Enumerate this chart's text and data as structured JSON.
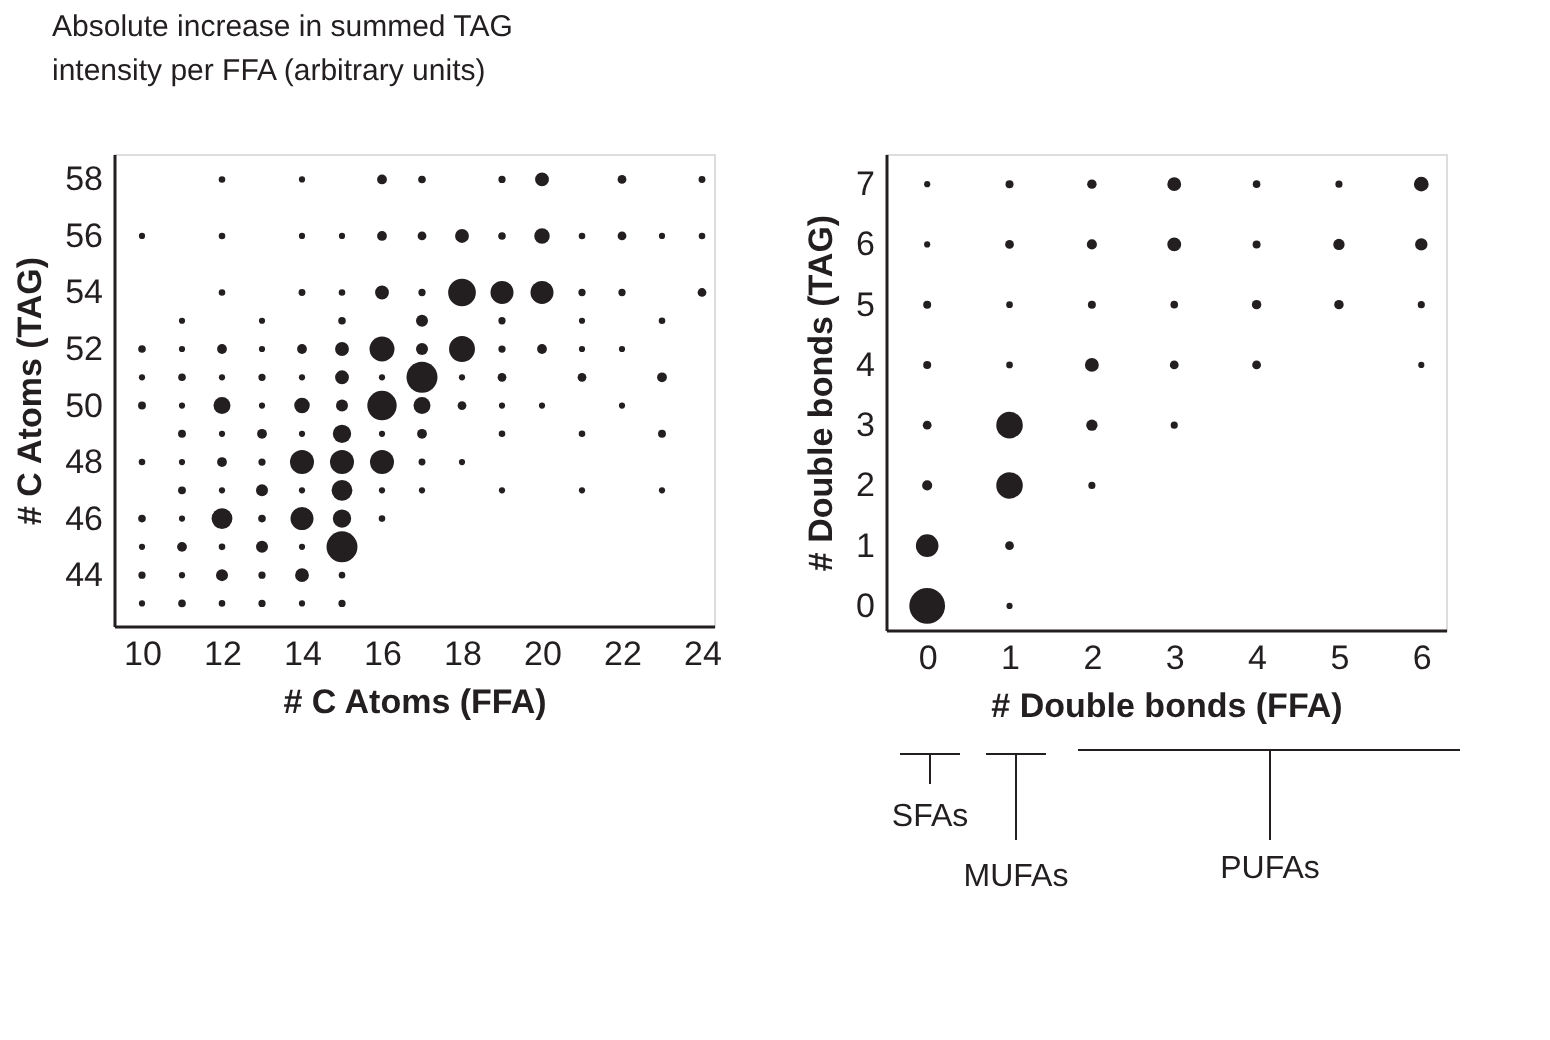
{
  "chart_data": [
    {
      "type": "bubble",
      "xlabel": "# C Atoms (FFA)",
      "ylabel": "# C Atoms (TAG)",
      "legend_title": "Absolute increase in summed TAG intensity per FFA (arbitrary units)",
      "xlim": [
        9.3,
        24.3
      ],
      "ylim": [
        42.2,
        58.9
      ],
      "xticks": [
        10,
        12,
        14,
        16,
        18,
        20,
        22,
        24
      ],
      "yticks": [
        44,
        46,
        48,
        50,
        52,
        54,
        56,
        58
      ],
      "series": [
        {
          "color": "#231f20",
          "x": [
            12,
            14,
            16,
            17,
            19,
            20,
            22,
            24,
            10,
            12,
            14,
            15,
            16,
            17,
            18,
            19,
            20,
            21,
            22,
            23,
            24,
            12,
            14,
            15,
            16,
            17,
            18,
            19,
            20,
            21,
            22,
            24,
            11,
            13,
            15,
            17,
            19,
            21,
            23,
            10,
            11,
            12,
            13,
            14,
            15,
            16,
            17,
            18,
            19,
            20,
            21,
            22,
            10,
            11,
            12,
            13,
            14,
            15,
            16,
            17,
            18,
            19,
            21,
            23,
            10,
            11,
            12,
            13,
            14,
            15,
            16,
            17,
            18,
            19,
            20,
            22,
            11,
            12,
            13,
            14,
            15,
            16,
            17,
            19,
            21,
            23,
            10,
            11,
            12,
            13,
            14,
            15,
            16,
            17,
            18,
            11,
            12,
            13,
            14,
            15,
            16,
            17,
            19,
            21,
            23,
            10,
            11,
            12,
            13,
            14,
            15,
            16,
            10,
            11,
            12,
            13,
            14,
            15,
            10,
            11,
            12,
            13,
            14,
            15,
            10,
            11,
            12,
            13,
            14,
            15
          ],
          "values": [
            58,
            58,
            58,
            58,
            58,
            58,
            58,
            58,
            56,
            56,
            56,
            56,
            56,
            56,
            56,
            56,
            56,
            56,
            56,
            56,
            56,
            54,
            54,
            54,
            54,
            54,
            54,
            54,
            54,
            54,
            54,
            54,
            53,
            53,
            53,
            53,
            53,
            53,
            53,
            52,
            52,
            52,
            52,
            52,
            52,
            52,
            52,
            52,
            52,
            52,
            52,
            52,
            51,
            51,
            51,
            51,
            51,
            51,
            51,
            51,
            51,
            51,
            51,
            51,
            50,
            50,
            50,
            50,
            50,
            50,
            50,
            50,
            50,
            50,
            50,
            50,
            49,
            49,
            49,
            49,
            49,
            49,
            49,
            49,
            49,
            49,
            48,
            48,
            48,
            48,
            48,
            48,
            48,
            48,
            48,
            47,
            47,
            47,
            47,
            47,
            47,
            47,
            47,
            47,
            47,
            46,
            46,
            46,
            46,
            46,
            46,
            46,
            45,
            45,
            45,
            45,
            45,
            45,
            44,
            44,
            44,
            44,
            44,
            44,
            43,
            43,
            43,
            43,
            43,
            43
          ],
          "sizes": [
            0.045,
            0.04,
            0.1,
            0.06,
            0.055,
            0.2,
            0.08,
            0.05,
            0.04,
            0.045,
            0.04,
            0.04,
            0.1,
            0.08,
            0.2,
            0.06,
            0.25,
            0.045,
            0.08,
            0.04,
            0.045,
            0.045,
            0.05,
            0.045,
            0.2,
            0.055,
            0.8,
            0.55,
            0.55,
            0.055,
            0.055,
            0.08,
            0.04,
            0.04,
            0.06,
            0.15,
            0.055,
            0.04,
            0.045,
            0.06,
            0.04,
            0.1,
            0.04,
            0.1,
            0.2,
            0.65,
            0.15,
            0.7,
            0.055,
            0.1,
            0.04,
            0.04,
            0.04,
            0.06,
            0.04,
            0.055,
            0.04,
            0.2,
            0.04,
            1,
            0.04,
            0.08,
            0.08,
            0.1,
            0.065,
            0.04,
            0.3,
            0.04,
            0.25,
            0.15,
            0.9,
            0.3,
            0.08,
            0.04,
            0.04,
            0.04,
            0.065,
            0.04,
            0.1,
            0.04,
            0.35,
            0.04,
            0.1,
            0.045,
            0.045,
            0.065,
            0.045,
            0.04,
            0.1,
            0.055,
            0.6,
            0.6,
            0.6,
            0.05,
            0.04,
            0.065,
            0.04,
            0.15,
            0.04,
            0.45,
            0.04,
            0.04,
            0.04,
            0.04,
            0.04,
            0.06,
            0.04,
            0.45,
            0.06,
            0.55,
            0.35,
            0.045,
            0.04,
            0.1,
            0.045,
            0.15,
            0.04,
            1,
            0.055,
            0.04,
            0.15,
            0.055,
            0.2,
            0.045,
            0.04,
            0.06,
            0.045,
            0.055,
            0.04,
            0.055
          ]
        }
      ]
    },
    {
      "type": "bubble",
      "xlabel": "# Double bonds (FFA)",
      "ylabel": "# Double bonds (TAG)",
      "xlim": [
        -0.5,
        6.3
      ],
      "ylim": [
        -0.4,
        7.5
      ],
      "xticks": [
        0,
        1,
        2,
        3,
        4,
        5,
        6
      ],
      "yticks": [
        0,
        1,
        2,
        3,
        4,
        5,
        6,
        7
      ],
      "annotations": [
        "SFAs",
        "MUFAs",
        "PUFAs"
      ],
      "series": [
        {
          "color": "#231f20",
          "x": [
            0,
            0,
            0,
            0,
            0,
            0,
            0,
            0,
            1,
            1,
            1,
            1,
            1,
            1,
            1,
            1,
            2,
            2,
            2,
            2,
            2,
            2,
            3,
            3,
            3,
            3,
            3,
            4,
            4,
            4,
            4,
            5,
            5,
            5,
            6,
            6,
            6,
            6
          ],
          "values": [
            0,
            1,
            2,
            3,
            4,
            5,
            6,
            7,
            0,
            1,
            2,
            3,
            4,
            5,
            6,
            7,
            2,
            3,
            4,
            5,
            6,
            7,
            3,
            4,
            5,
            6,
            7,
            4,
            5,
            6,
            7,
            5,
            6,
            7,
            4,
            5,
            6,
            7
          ],
          "sizes": [
            1,
            0.4,
            0.08,
            0.06,
            0.05,
            0.05,
            0.03,
            0.03,
            0.03,
            0.06,
            0.55,
            0.55,
            0.035,
            0.035,
            0.06,
            0.05,
            0.04,
            0.1,
            0.15,
            0.05,
            0.08,
            0.07,
            0.04,
            0.06,
            0.045,
            0.15,
            0.15,
            0.06,
            0.07,
            0.05,
            0.045,
            0.07,
            0.1,
            0.04,
            0.03,
            0.04,
            0.12,
            0.17
          ]
        }
      ]
    }
  ]
}
